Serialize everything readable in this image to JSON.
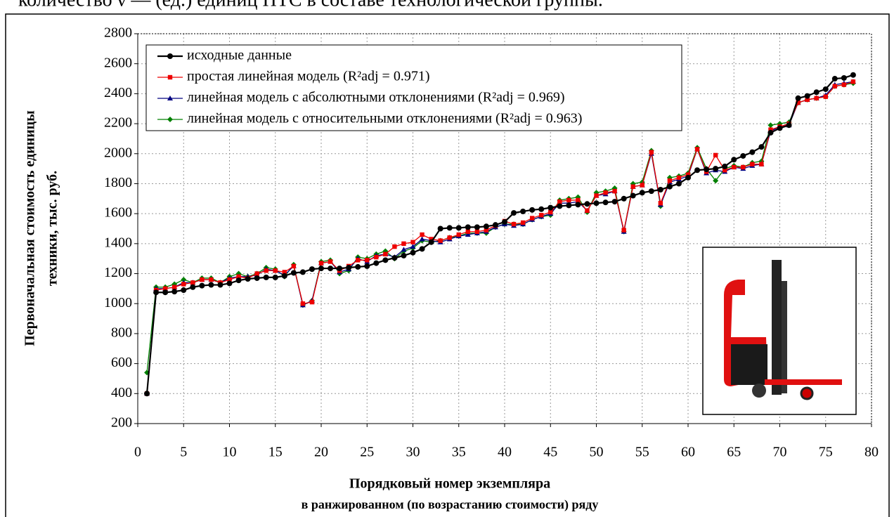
{
  "header_text": "количество ν — (ед.) единиц ПТС в составе технологической группы.",
  "chart_data": {
    "type": "line",
    "ylabel": [
      "Первоначальная стоимость единицы",
      "техники, тыс. руб."
    ],
    "xlabel": [
      "Порядковый номер экземпляра",
      "в ранжированном (по возрастанию стоимости) ряду"
    ],
    "x": [
      1,
      2,
      3,
      4,
      5,
      6,
      7,
      8,
      9,
      10,
      11,
      12,
      13,
      14,
      15,
      16,
      17,
      18,
      19,
      20,
      21,
      22,
      23,
      24,
      25,
      26,
      27,
      28,
      29,
      30,
      31,
      32,
      33,
      34,
      35,
      36,
      37,
      38,
      39,
      40,
      41,
      42,
      43,
      44,
      45,
      46,
      47,
      48,
      49,
      50,
      51,
      52,
      53,
      54,
      55,
      56,
      57,
      58,
      59,
      60,
      61,
      62,
      63,
      64,
      65,
      66,
      67,
      68,
      69,
      70,
      71,
      72,
      73,
      74,
      75,
      76,
      77,
      78
    ],
    "series": [
      {
        "name": "исходные данные",
        "color": "#000000",
        "marker": "circle",
        "values": [
          400,
          1075,
          1075,
          1080,
          1090,
          1110,
          1120,
          1125,
          1125,
          1135,
          1155,
          1165,
          1170,
          1175,
          1175,
          1185,
          1205,
          1210,
          1230,
          1235,
          1235,
          1235,
          1240,
          1245,
          1250,
          1270,
          1290,
          1305,
          1320,
          1340,
          1365,
          1410,
          1500,
          1505,
          1505,
          1510,
          1510,
          1515,
          1525,
          1545,
          1605,
          1615,
          1625,
          1630,
          1640,
          1650,
          1655,
          1660,
          1665,
          1670,
          1675,
          1680,
          1700,
          1720,
          1740,
          1750,
          1760,
          1780,
          1800,
          1840,
          1890,
          1895,
          1900,
          1915,
          1960,
          1985,
          2010,
          2045,
          2140,
          2170,
          2190,
          2370,
          2385,
          2410,
          2430,
          2500,
          2505,
          2525
        ]
      },
      {
        "name": "простая линейная модель (R²adj = 0.971)",
        "color": "#ee0000",
        "marker": "square",
        "values": [
          400,
          1090,
          1100,
          1110,
          1130,
          1140,
          1160,
          1160,
          1140,
          1160,
          1180,
          1170,
          1200,
          1220,
          1220,
          1210,
          1250,
          1000,
          1010,
          1270,
          1280,
          1220,
          1250,
          1290,
          1290,
          1310,
          1330,
          1380,
          1400,
          1410,
          1460,
          1430,
          1420,
          1440,
          1460,
          1480,
          1480,
          1490,
          1520,
          1550,
          1530,
          1540,
          1570,
          1590,
          1610,
          1680,
          1690,
          1690,
          1620,
          1720,
          1740,
          1750,
          1490,
          1780,
          1790,
          2010,
          1670,
          1820,
          1840,
          1860,
          2030,
          1880,
          1990,
          1890,
          1910,
          1910,
          1930,
          1930,
          2160,
          2180,
          2200,
          2340,
          2360,
          2370,
          2380,
          2450,
          2460,
          2480
        ]
      },
      {
        "name": "линейная модель с абсолютными отклонениями (R²adj = 0.969)",
        "color": "#000080",
        "marker": "triangle",
        "values": [
          400,
          1100,
          1100,
          1110,
          1140,
          1140,
          1160,
          1160,
          1140,
          1170,
          1180,
          1180,
          1190,
          1230,
          1220,
          1190,
          1250,
          990,
          1020,
          1270,
          1280,
          1210,
          1230,
          1300,
          1280,
          1320,
          1330,
          1310,
          1360,
          1380,
          1430,
          1420,
          1410,
          1430,
          1450,
          1460,
          1470,
          1480,
          1510,
          1530,
          1520,
          1530,
          1560,
          1580,
          1600,
          1670,
          1670,
          1680,
          1620,
          1720,
          1730,
          1750,
          1480,
          1780,
          1790,
          2000,
          1660,
          1810,
          1830,
          1850,
          2030,
          1870,
          1890,
          1880,
          1910,
          1900,
          1920,
          1930,
          2150,
          2180,
          2190,
          2340,
          2360,
          2370,
          2390,
          2460,
          2470,
          2480
        ]
      },
      {
        "name": "линейная модель с относительными отклонениями (R²adj = 0.963)",
        "color": "#008000",
        "marker": "diamond",
        "values": [
          540,
          1110,
          1110,
          1130,
          1160,
          1140,
          1170,
          1170,
          1140,
          1180,
          1200,
          1180,
          1200,
          1240,
          1230,
          1180,
          1260,
          990,
          1020,
          1280,
          1290,
          1200,
          1220,
          1310,
          1300,
          1330,
          1350,
          1300,
          1350,
          1370,
          1420,
          1410,
          1420,
          1440,
          1450,
          1470,
          1470,
          1470,
          1510,
          1530,
          1530,
          1530,
          1560,
          1580,
          1590,
          1690,
          1700,
          1710,
          1610,
          1740,
          1750,
          1770,
          1480,
          1800,
          1810,
          2020,
          1650,
          1840,
          1850,
          1870,
          2040,
          1900,
          1820,
          1900,
          1920,
          1910,
          1940,
          1950,
          2190,
          2200,
          2210,
          2340,
          2360,
          2370,
          2380,
          2450,
          2460,
          2470
        ]
      }
    ],
    "xlim": [
      0,
      80
    ],
    "xticks": [
      0,
      5,
      10,
      15,
      20,
      25,
      30,
      35,
      40,
      45,
      50,
      55,
      60,
      65,
      70,
      75,
      80
    ],
    "ylim": [
      200,
      2800
    ],
    "yticks": [
      200,
      400,
      600,
      800,
      1000,
      1200,
      1400,
      1600,
      1800,
      2000,
      2200,
      2400,
      2600,
      2800
    ],
    "grid": true,
    "legend": "upper left"
  }
}
